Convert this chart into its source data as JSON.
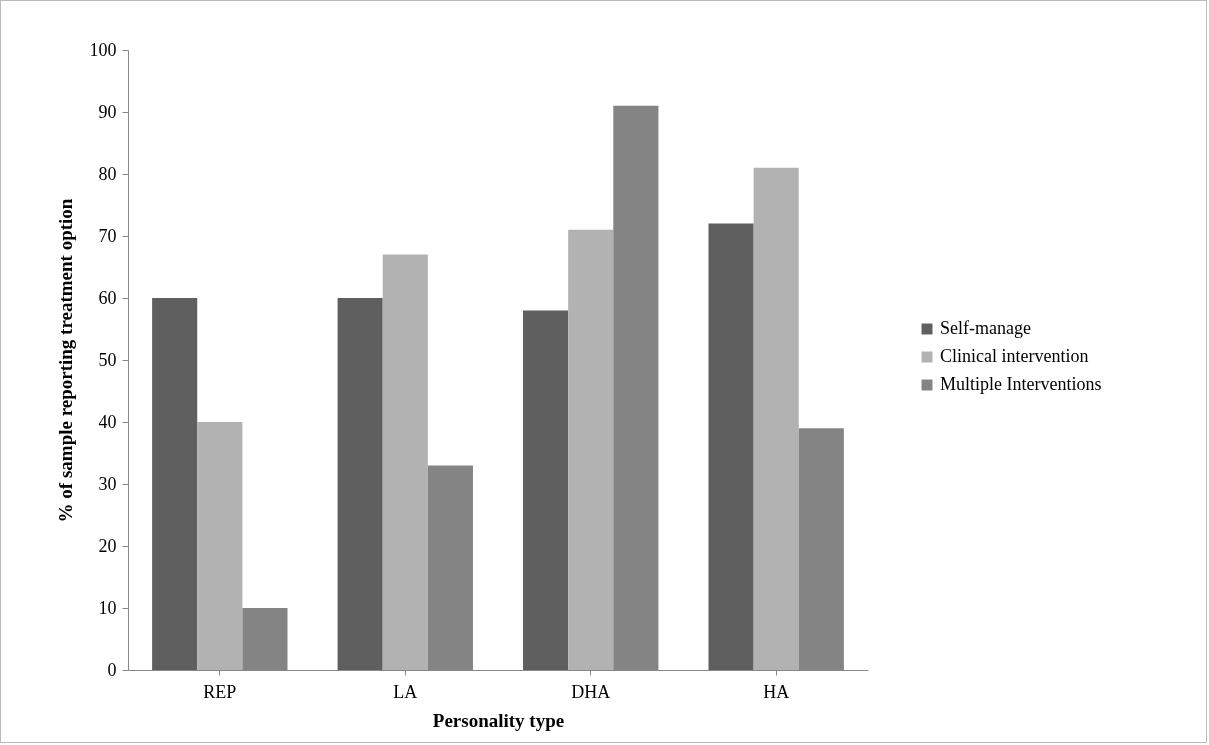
{
  "chart_data": {
    "type": "bar",
    "xlabel": "Personality type",
    "ylabel": "% of sample reporting treatment option",
    "categories": [
      "REP",
      "LA",
      "DHA",
      "HA"
    ],
    "series": [
      {
        "name": "Self-manage",
        "color": "#5f5f5f",
        "values": [
          60,
          60,
          58,
          72
        ]
      },
      {
        "name": "Clinical intervention",
        "color": "#b2b2b2",
        "values": [
          40,
          67,
          71,
          81
        ]
      },
      {
        "name": "Multiple Interventions",
        "color": "#848484",
        "values": [
          10,
          33,
          91,
          39
        ]
      }
    ],
    "ylim": [
      0,
      100
    ],
    "yticks": [
      0,
      10,
      20,
      30,
      40,
      50,
      60,
      70,
      80,
      90,
      100
    ],
    "grid": false,
    "legend": "right"
  }
}
